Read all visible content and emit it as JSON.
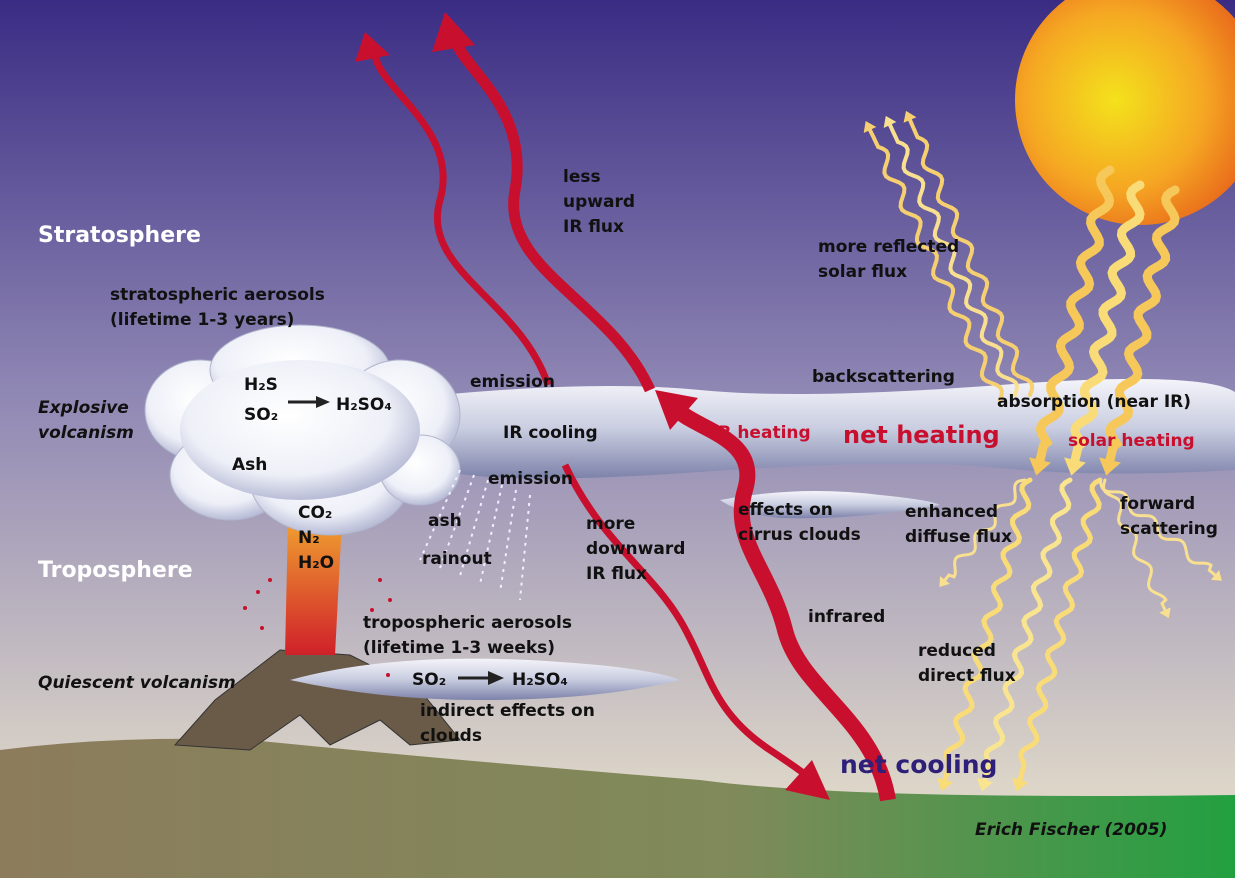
{
  "labels": [
    {
      "lines": [
        "Stratosphere"
      ]
    },
    {
      "lines": [
        "Troposphere"
      ]
    },
    {
      "lines": [
        "stratospheric aerosols",
        "(lifetime 1-3 years)"
      ]
    },
    {
      "lines": [
        "Explosive",
        "volcanism"
      ]
    },
    {
      "lines": [
        "H₂S"
      ]
    },
    {
      "lines": [
        "SO₂"
      ]
    },
    {
      "lines": [
        "H₂SO₄"
      ]
    },
    {
      "lines": [
        "Ash"
      ]
    },
    {
      "lines": [
        "CO₂",
        "N₂",
        "H₂O"
      ]
    },
    {
      "lines": [
        "ash"
      ]
    },
    {
      "lines": [
        "rainout"
      ]
    },
    {
      "lines": [
        "emission"
      ]
    },
    {
      "lines": [
        "IR cooling"
      ]
    },
    {
      "lines": [
        "emission"
      ]
    },
    {
      "lines": [
        "less",
        "upward",
        "IR flux"
      ]
    },
    {
      "lines": [
        "more reflected",
        "solar flux"
      ]
    },
    {
      "lines": [
        "backscattering"
      ]
    },
    {
      "lines": [
        "absorption (near IR)"
      ]
    },
    {
      "lines": [
        "IR heating"
      ]
    },
    {
      "lines": [
        "net heating"
      ]
    },
    {
      "lines": [
        "solar heating"
      ]
    },
    {
      "lines": [
        "effects on",
        "cirrus clouds"
      ]
    },
    {
      "lines": [
        "enhanced",
        "diffuse flux"
      ]
    },
    {
      "lines": [
        "forward",
        "scattering"
      ]
    },
    {
      "lines": [
        "more",
        "downward",
        "IR flux"
      ]
    },
    {
      "lines": [
        "infrared"
      ]
    },
    {
      "lines": [
        "tropospheric aerosols",
        "(lifetime 1-3 weeks)"
      ]
    },
    {
      "lines": [
        "Quiescent volcanism"
      ]
    },
    {
      "lines": [
        "SO₂"
      ]
    },
    {
      "lines": [
        "H₂SO₄"
      ]
    },
    {
      "lines": [
        "indirect effects on",
        "clouds"
      ]
    },
    {
      "lines": [
        "reduced",
        "direct flux"
      ]
    },
    {
      "lines": [
        "net cooling"
      ]
    },
    {
      "lines": [
        "Erich Fischer (2005)"
      ]
    }
  ]
}
